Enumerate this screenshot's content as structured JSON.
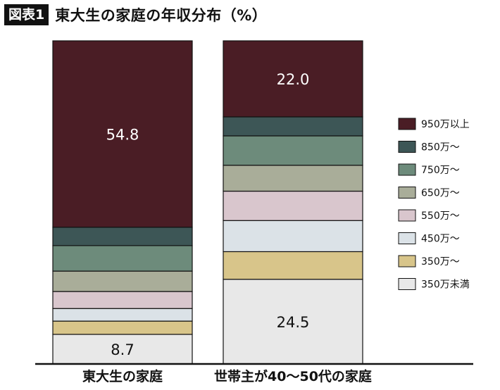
{
  "header": {
    "badge": "図表1",
    "title": "東大生の家庭の年収分布（%）"
  },
  "chart_data": {
    "type": "bar",
    "stacked": true,
    "orientation": "vertical",
    "categories": [
      "東大生の家庭",
      "世帯主が40〜50代の家庭"
    ],
    "series": [
      {
        "name": "350万未満",
        "color": "#e8e8e8",
        "values": [
          8.7,
          24.5
        ]
      },
      {
        "name": "350万〜",
        "color": "#d8c58a",
        "values": [
          3.9,
          8.0
        ]
      },
      {
        "name": "450万〜",
        "color": "#dbe2e7",
        "values": [
          3.7,
          9.0
        ]
      },
      {
        "name": "550万〜",
        "color": "#d9c6cd",
        "values": [
          5.0,
          8.5
        ]
      },
      {
        "name": "650万〜",
        "color": "#a9ad99",
        "values": [
          6.0,
          7.5
        ]
      },
      {
        "name": "750万〜",
        "color": "#6d8b7b",
        "values": [
          7.5,
          8.5
        ]
      },
      {
        "name": "850万〜",
        "color": "#3d5656",
        "values": [
          5.4,
          5.5
        ]
      },
      {
        "name": "950万以上",
        "color": "#4a1d25",
        "values": [
          54.8,
          22.0
        ]
      }
    ],
    "data_labels": [
      {
        "category": 0,
        "series": "950万以上",
        "text": "54.8"
      },
      {
        "category": 0,
        "series": "350万未満",
        "text": "8.7"
      },
      {
        "category": 1,
        "series": "950万以上",
        "text": "22.0"
      },
      {
        "category": 1,
        "series": "350万未満",
        "text": "24.5"
      }
    ],
    "ylim": [
      0,
      100
    ],
    "legend_position": "right",
    "legend_order": [
      "950万以上",
      "850万〜",
      "750万〜",
      "650万〜",
      "550万〜",
      "450万〜",
      "350万〜",
      "350万未満"
    ]
  }
}
